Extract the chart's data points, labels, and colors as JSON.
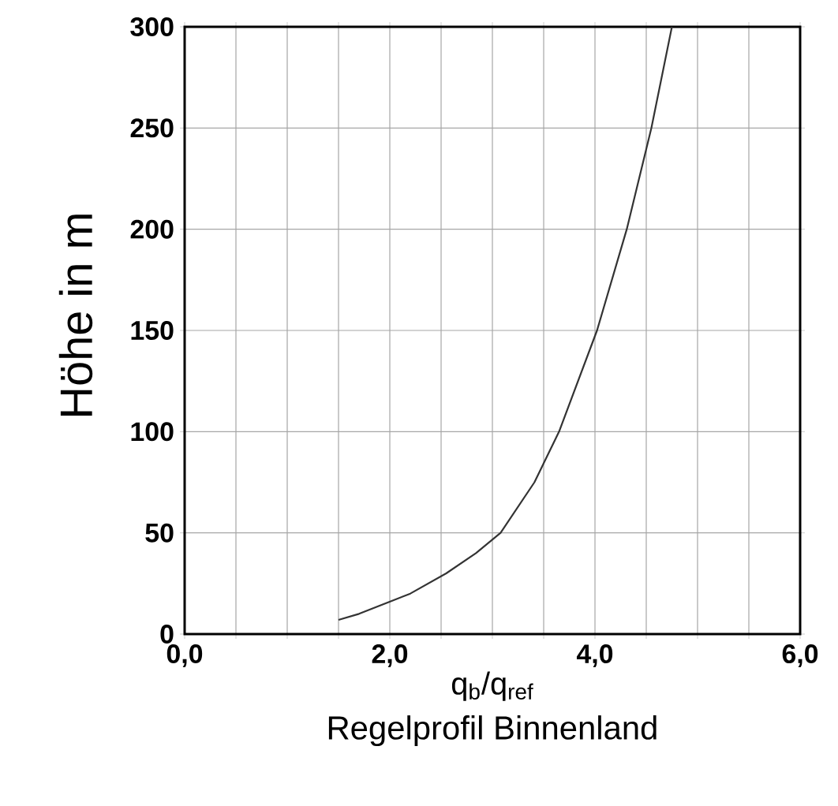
{
  "chart_data": {
    "type": "line",
    "title": "Regelprofil Binnenland",
    "xlabel": "q$_{b}$/q$_{ref}$",
    "ylabel": "Höhe in m",
    "x": [
      1.5,
      1.7,
      2.2,
      2.55,
      2.84,
      3.08,
      3.41,
      3.65,
      4.02,
      4.31,
      4.55,
      4.75
    ],
    "series": [
      {
        "color": "#333333",
        "values": [
          7,
          10,
          20,
          30,
          40,
          50,
          75,
          100,
          150,
          200,
          250,
          300
        ]
      }
    ],
    "xlim": [
      0,
      6
    ],
    "ylim": [
      0,
      300
    ],
    "xticks": [
      {
        "value": 0,
        "label": "0,0"
      },
      {
        "value": 0.5,
        "label": null
      },
      {
        "value": 1,
        "label": null
      },
      {
        "value": 1.5,
        "label": null
      },
      {
        "value": 2,
        "label": "2,0"
      },
      {
        "value": 2.5,
        "label": null
      },
      {
        "value": 3,
        "label": null
      },
      {
        "value": 3.5,
        "label": null
      },
      {
        "value": 4,
        "label": "4,0"
      },
      {
        "value": 4.5,
        "label": null
      },
      {
        "value": 5,
        "label": null
      },
      {
        "value": 5.5,
        "label": null
      },
      {
        "value": 6,
        "label": "6,0"
      }
    ],
    "yticks": [
      0,
      50,
      100,
      150,
      200,
      250,
      300
    ],
    "grid": true,
    "marker": "none",
    "line_style": "solid"
  }
}
